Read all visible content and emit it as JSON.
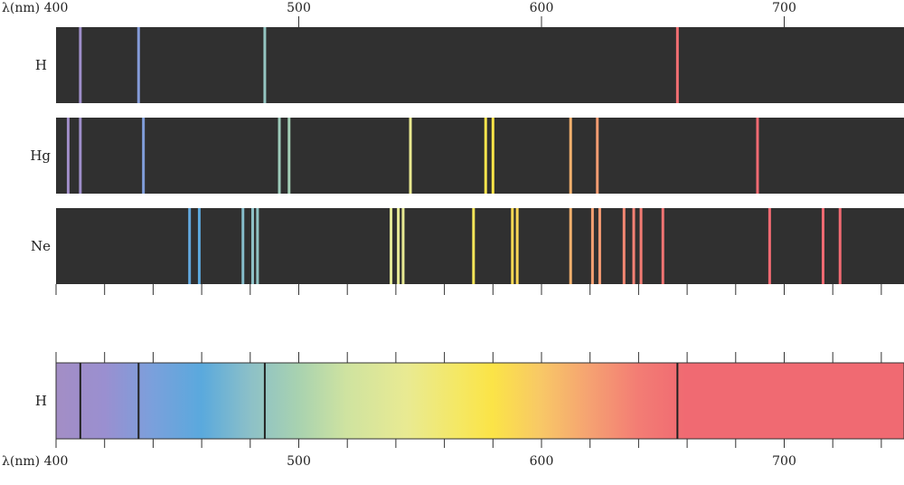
{
  "axis_label": "λ(nm)",
  "ticks": [
    400,
    500,
    600,
    700
  ],
  "x_range": [
    400,
    750
  ],
  "colors": {
    "panel_bg": "#303030",
    "text": "#222222",
    "absorption_line": "#222222"
  },
  "emission": [
    {
      "label": "H",
      "lines": [
        410,
        434,
        486,
        656
      ]
    },
    {
      "label": "Hg",
      "lines": [
        405,
        410,
        436,
        492,
        496,
        546,
        577,
        580,
        612,
        623,
        689
      ]
    },
    {
      "label": "Ne",
      "lines": [
        455,
        459,
        477,
        481,
        483,
        538,
        541,
        543,
        572,
        588,
        590,
        612,
        621,
        624,
        634,
        638,
        641,
        650,
        694,
        716,
        723
      ]
    }
  ],
  "absorption": {
    "label": "H",
    "lines": [
      410,
      434,
      486,
      656
    ]
  },
  "spectrum_stops": [
    {
      "nm": 400,
      "color": "#a38ec5"
    },
    {
      "nm": 420,
      "color": "#9a8fd0"
    },
    {
      "nm": 440,
      "color": "#7aa0dc"
    },
    {
      "nm": 460,
      "color": "#5aa9dd"
    },
    {
      "nm": 480,
      "color": "#8cc0c8"
    },
    {
      "nm": 500,
      "color": "#a8d2b0"
    },
    {
      "nm": 520,
      "color": "#cfe3a0"
    },
    {
      "nm": 545,
      "color": "#e9ea92"
    },
    {
      "nm": 565,
      "color": "#f4e866"
    },
    {
      "nm": 580,
      "color": "#fbe447"
    },
    {
      "nm": 600,
      "color": "#f8c866"
    },
    {
      "nm": 620,
      "color": "#f5a272"
    },
    {
      "nm": 640,
      "color": "#f37d74"
    },
    {
      "nm": 660,
      "color": "#f06a72"
    },
    {
      "nm": 750,
      "color": "#f06a72"
    }
  ]
}
